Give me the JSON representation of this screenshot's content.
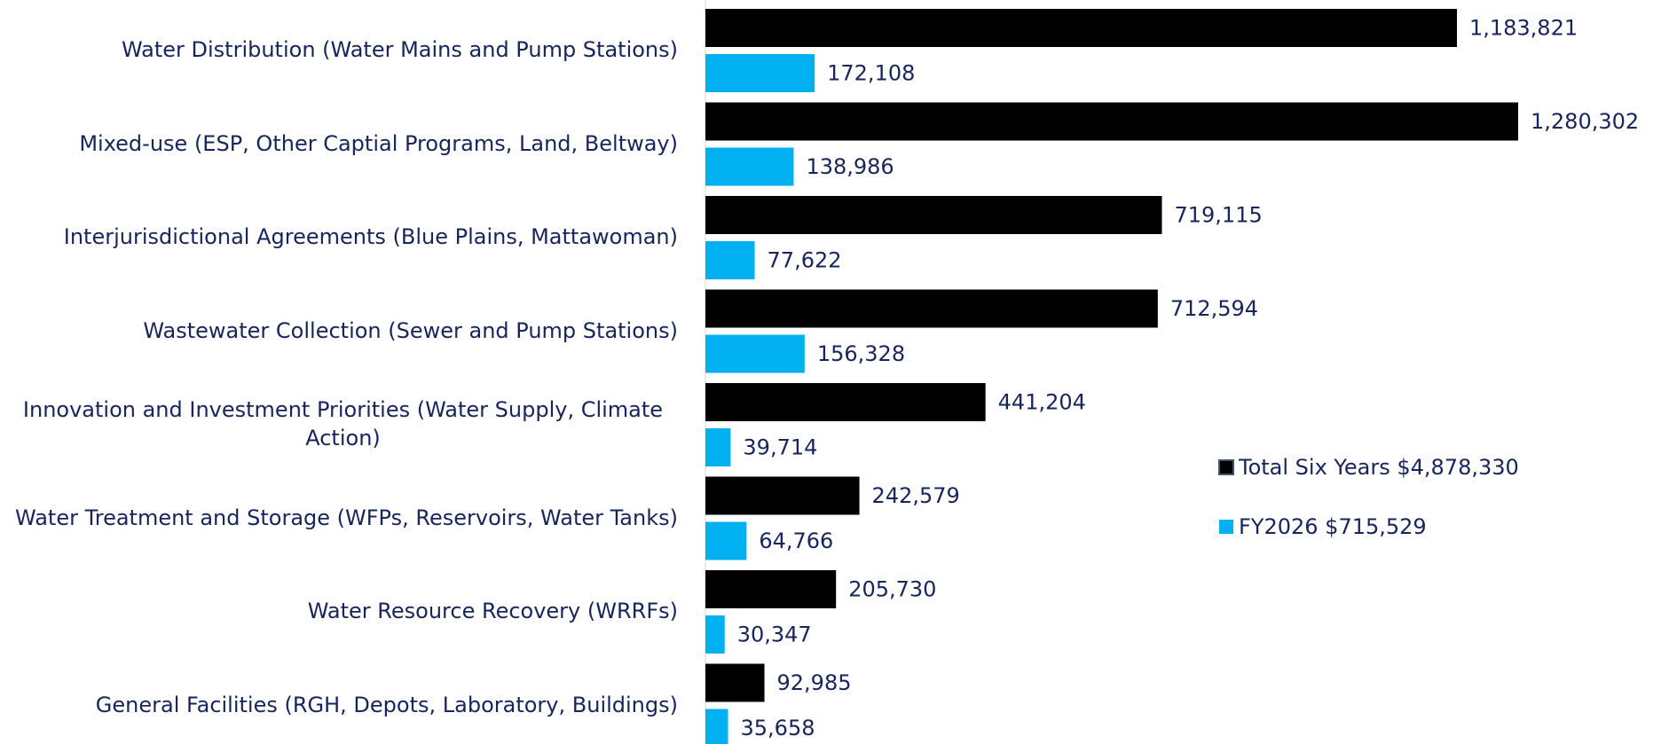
{
  "chart_data": {
    "type": "bar",
    "orientation": "horizontal",
    "categories": [
      "Water Distribution (Water Mains and Pump Stations)",
      "Mixed-use (ESP, Other Captial Programs, Land, Beltway)",
      "Interjurisdictional Agreements (Blue Plains, Mattawoman)",
      "Wastewater Collection (Sewer and Pump Stations)",
      "Innovation and Investment Priorities (Water Supply, Climate Action)",
      "Water Treatment and Storage (WFPs, Reservoirs, Water Tanks)",
      "Water Resource Recovery (WRRFs)",
      "General Facilities (RGH, Depots, Laboratory, Buildings)"
    ],
    "series": [
      {
        "name": "Total Six Years $4,878,330",
        "color": "#000000",
        "values": [
          1183821,
          1280302,
          719115,
          712594,
          441204,
          242579,
          205730,
          92985
        ],
        "value_labels": [
          "1,183,821",
          "1,280,302",
          "719,115",
          "712,594",
          "441,204",
          "242,579",
          "205,730",
          "92,985"
        ]
      },
      {
        "name": "FY2026 $715,529",
        "color": "#00b0f0",
        "values": [
          172108,
          138986,
          77622,
          156328,
          39714,
          64766,
          30347,
          35658
        ],
        "value_labels": [
          "172,108",
          "138,986",
          "77,622",
          "156,328",
          "39,714",
          "64,766",
          "30,347",
          "35,658"
        ]
      }
    ]
  }
}
